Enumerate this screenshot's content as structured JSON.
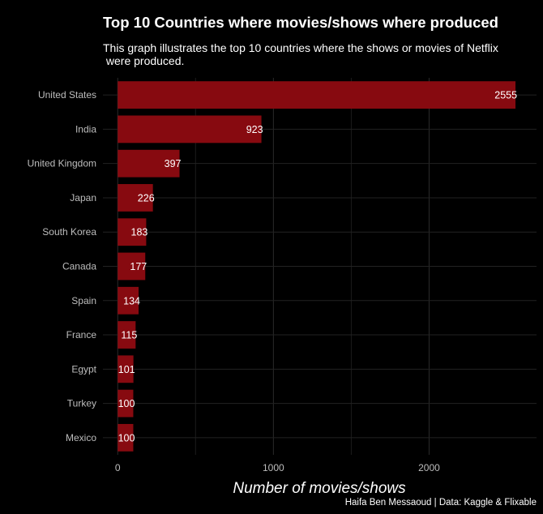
{
  "title": "Top 10 Countries where movies/shows where produced",
  "subtitle": "This graph illustrates the top 10 countries where the shows or movies of Netflix\n were produced.",
  "caption": "Haifa Ben Messaoud | Data: Kaggle & Flixable",
  "colors": {
    "background": "#000000",
    "bar": "#870a10",
    "grid": "#2a2a2a",
    "text": "#ffffff",
    "axis_text": "#bdbdbd"
  },
  "chart_data": {
    "type": "bar",
    "orientation": "horizontal",
    "title": "Top 10 Countries where movies/shows where produced",
    "xlabel": "Number of movies/shows",
    "ylabel": "",
    "categories": [
      "United States",
      "India",
      "United Kingdom",
      "Japan",
      "South Korea",
      "Canada",
      "Spain",
      "France",
      "Egypt",
      "Turkey",
      "Mexico"
    ],
    "values": [
      2555,
      923,
      397,
      226,
      183,
      177,
      134,
      115,
      101,
      100,
      100
    ],
    "data_labels": [
      "2555",
      "923",
      "397",
      "226",
      "183",
      "177",
      "134",
      "115",
      "101",
      "100",
      "100"
    ],
    "xticks": [
      0,
      1000,
      2000
    ],
    "xtick_labels": [
      "0",
      "1000",
      "2000"
    ],
    "xlim": [
      -95,
      2690
    ],
    "grid": true,
    "legend": "none"
  }
}
